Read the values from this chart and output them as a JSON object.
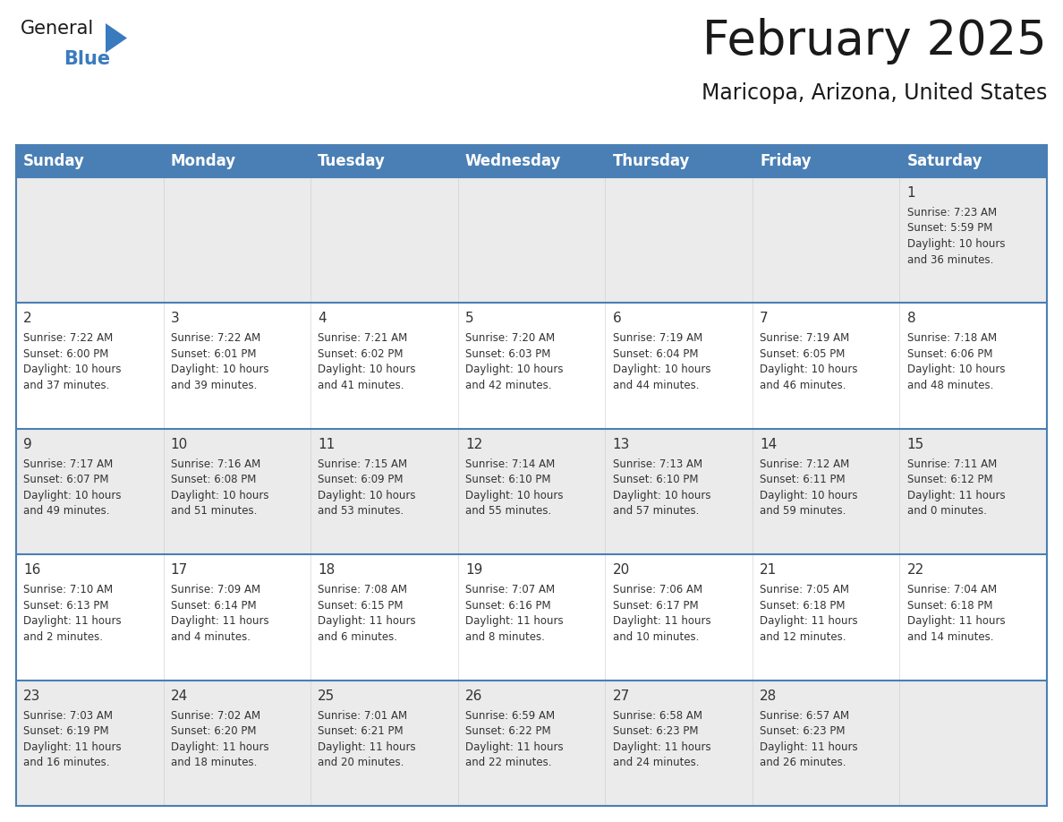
{
  "title": "February 2025",
  "subtitle": "Maricopa, Arizona, United States",
  "header_bg": "#4a7fb5",
  "header_text": "#ffffff",
  "row_bg_light": "#ebebeb",
  "row_bg_white": "#ffffff",
  "divider_color": "#4a7fb5",
  "text_color": "#333333",
  "day_names": [
    "Sunday",
    "Monday",
    "Tuesday",
    "Wednesday",
    "Thursday",
    "Friday",
    "Saturday"
  ],
  "calendar_data": [
    [
      null,
      null,
      null,
      null,
      null,
      null,
      {
        "day": 1,
        "sunrise": "7:23 AM",
        "sunset": "5:59 PM",
        "daylight": "10 hours\nand 36 minutes."
      }
    ],
    [
      {
        "day": 2,
        "sunrise": "7:22 AM",
        "sunset": "6:00 PM",
        "daylight": "10 hours\nand 37 minutes."
      },
      {
        "day": 3,
        "sunrise": "7:22 AM",
        "sunset": "6:01 PM",
        "daylight": "10 hours\nand 39 minutes."
      },
      {
        "day": 4,
        "sunrise": "7:21 AM",
        "sunset": "6:02 PM",
        "daylight": "10 hours\nand 41 minutes."
      },
      {
        "day": 5,
        "sunrise": "7:20 AM",
        "sunset": "6:03 PM",
        "daylight": "10 hours\nand 42 minutes."
      },
      {
        "day": 6,
        "sunrise": "7:19 AM",
        "sunset": "6:04 PM",
        "daylight": "10 hours\nand 44 minutes."
      },
      {
        "day": 7,
        "sunrise": "7:19 AM",
        "sunset": "6:05 PM",
        "daylight": "10 hours\nand 46 minutes."
      },
      {
        "day": 8,
        "sunrise": "7:18 AM",
        "sunset": "6:06 PM",
        "daylight": "10 hours\nand 48 minutes."
      }
    ],
    [
      {
        "day": 9,
        "sunrise": "7:17 AM",
        "sunset": "6:07 PM",
        "daylight": "10 hours\nand 49 minutes."
      },
      {
        "day": 10,
        "sunrise": "7:16 AM",
        "sunset": "6:08 PM",
        "daylight": "10 hours\nand 51 minutes."
      },
      {
        "day": 11,
        "sunrise": "7:15 AM",
        "sunset": "6:09 PM",
        "daylight": "10 hours\nand 53 minutes."
      },
      {
        "day": 12,
        "sunrise": "7:14 AM",
        "sunset": "6:10 PM",
        "daylight": "10 hours\nand 55 minutes."
      },
      {
        "day": 13,
        "sunrise": "7:13 AM",
        "sunset": "6:10 PM",
        "daylight": "10 hours\nand 57 minutes."
      },
      {
        "day": 14,
        "sunrise": "7:12 AM",
        "sunset": "6:11 PM",
        "daylight": "10 hours\nand 59 minutes."
      },
      {
        "day": 15,
        "sunrise": "7:11 AM",
        "sunset": "6:12 PM",
        "daylight": "11 hours\nand 0 minutes."
      }
    ],
    [
      {
        "day": 16,
        "sunrise": "7:10 AM",
        "sunset": "6:13 PM",
        "daylight": "11 hours\nand 2 minutes."
      },
      {
        "day": 17,
        "sunrise": "7:09 AM",
        "sunset": "6:14 PM",
        "daylight": "11 hours\nand 4 minutes."
      },
      {
        "day": 18,
        "sunrise": "7:08 AM",
        "sunset": "6:15 PM",
        "daylight": "11 hours\nand 6 minutes."
      },
      {
        "day": 19,
        "sunrise": "7:07 AM",
        "sunset": "6:16 PM",
        "daylight": "11 hours\nand 8 minutes."
      },
      {
        "day": 20,
        "sunrise": "7:06 AM",
        "sunset": "6:17 PM",
        "daylight": "11 hours\nand 10 minutes."
      },
      {
        "day": 21,
        "sunrise": "7:05 AM",
        "sunset": "6:18 PM",
        "daylight": "11 hours\nand 12 minutes."
      },
      {
        "day": 22,
        "sunrise": "7:04 AM",
        "sunset": "6:18 PM",
        "daylight": "11 hours\nand 14 minutes."
      }
    ],
    [
      {
        "day": 23,
        "sunrise": "7:03 AM",
        "sunset": "6:19 PM",
        "daylight": "11 hours\nand 16 minutes."
      },
      {
        "day": 24,
        "sunrise": "7:02 AM",
        "sunset": "6:20 PM",
        "daylight": "11 hours\nand 18 minutes."
      },
      {
        "day": 25,
        "sunrise": "7:01 AM",
        "sunset": "6:21 PM",
        "daylight": "11 hours\nand 20 minutes."
      },
      {
        "day": 26,
        "sunrise": "6:59 AM",
        "sunset": "6:22 PM",
        "daylight": "11 hours\nand 22 minutes."
      },
      {
        "day": 27,
        "sunrise": "6:58 AM",
        "sunset": "6:23 PM",
        "daylight": "11 hours\nand 24 minutes."
      },
      {
        "day": 28,
        "sunrise": "6:57 AM",
        "sunset": "6:23 PM",
        "daylight": "11 hours\nand 26 minutes."
      },
      null
    ]
  ],
  "logo_color_general": "#1a1a1a",
  "logo_color_blue": "#3a7abf",
  "logo_triangle_color": "#3a7abf",
  "title_fontsize": 38,
  "subtitle_fontsize": 17,
  "header_fontsize": 12,
  "day_num_fontsize": 11,
  "cell_text_fontsize": 8.5
}
